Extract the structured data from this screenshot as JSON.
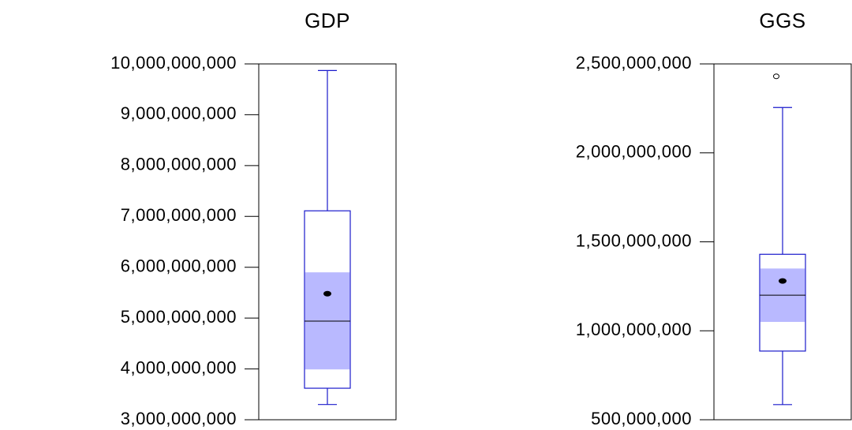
{
  "chart_data": [
    {
      "type": "box",
      "title": "GDP",
      "ylim": [
        3000000000,
        10000000000
      ],
      "yticks": [
        {
          "value": 3000000000,
          "label": "3,000,000,000"
        },
        {
          "value": 4000000000,
          "label": "4,000,000,000"
        },
        {
          "value": 5000000000,
          "label": "5,000,000,000"
        },
        {
          "value": 6000000000,
          "label": "6,000,000,000"
        },
        {
          "value": 7000000000,
          "label": "7,000,000,000"
        },
        {
          "value": 8000000000,
          "label": "8,000,000,000"
        },
        {
          "value": 9000000000,
          "label": "9,000,000,000"
        },
        {
          "value": 10000000000,
          "label": "10,000,000,000"
        }
      ],
      "whisker_low": 3300000000,
      "q1": 3620000000,
      "median": 4940000000,
      "q3": 7110000000,
      "whisker_high": 9870000000,
      "mean": 5480000000,
      "notch_low": 3990000000,
      "notch_high": 5900000000,
      "outliers": [],
      "color": "#1a1acc",
      "notch_color": "#b9b9ff"
    },
    {
      "type": "box",
      "title": "GGS",
      "ylim": [
        500000000,
        2500000000
      ],
      "yticks": [
        {
          "value": 500000000,
          "label": "500,000,000"
        },
        {
          "value": 1000000000,
          "label": "1,000,000,000"
        },
        {
          "value": 1500000000,
          "label": "1,500,000,000"
        },
        {
          "value": 2000000000,
          "label": "2,000,000,000"
        },
        {
          "value": 2500000000,
          "label": "2,500,000,000"
        }
      ],
      "whisker_low": 585000000,
      "q1": 886000000,
      "median": 1200000000,
      "q3": 1430000000,
      "whisker_high": 2255000000,
      "mean": 1280000000,
      "notch_low": 1050000000,
      "notch_high": 1350000000,
      "outliers": [
        2430000000
      ],
      "color": "#1a1acc",
      "notch_color": "#b9b9ff"
    }
  ]
}
